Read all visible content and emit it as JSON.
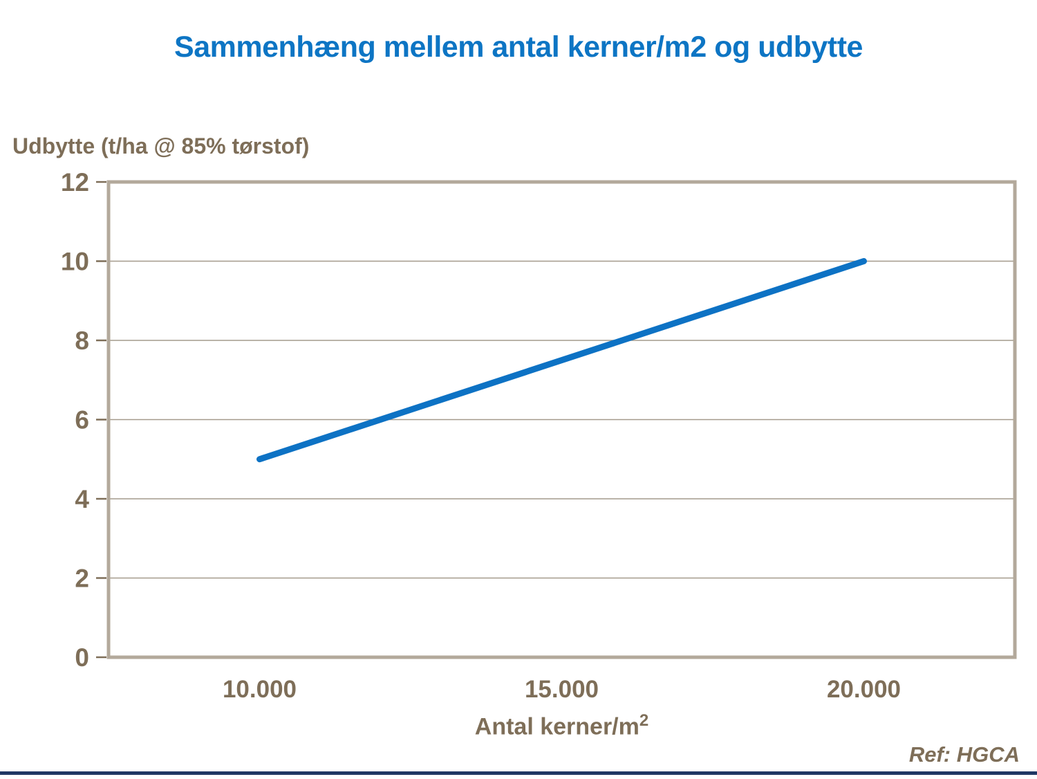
{
  "slide": {
    "title": "Sammenhæng mellem antal kerner/m2 og udbytte",
    "ref": "Ref: HGCA"
  },
  "colors": {
    "title_blue": "#0d75c4",
    "line_blue": "#0d72c4",
    "text_brown": "#7e6e58",
    "axis_border": "#b3a99b",
    "gridline": "#a49a8b",
    "bottom_rule": "#1f3864"
  },
  "chart_data": {
    "type": "line",
    "title": "Sammenhæng mellem antal kerner/m2 og udbytte",
    "ylabel": "Udbytte (t/ha @ 85% tørstof)",
    "xlabel": "Antal kerner/m2",
    "xlabel_base": "Antal kerner/m",
    "xlabel_sup": "2",
    "x": [
      10000,
      20000
    ],
    "series": [
      {
        "name": "Udbytte",
        "values": [
          5,
          10
        ]
      }
    ],
    "x_tick_values": [
      10000,
      15000,
      20000
    ],
    "x_tick_labels": [
      "10.000",
      "15.000",
      "20.000"
    ],
    "y_ticks": [
      0,
      2,
      4,
      6,
      8,
      10,
      12
    ],
    "xlim": [
      7500,
      22500
    ],
    "ylim": [
      0,
      12
    ],
    "grid": "horizontal",
    "legend": "none"
  }
}
